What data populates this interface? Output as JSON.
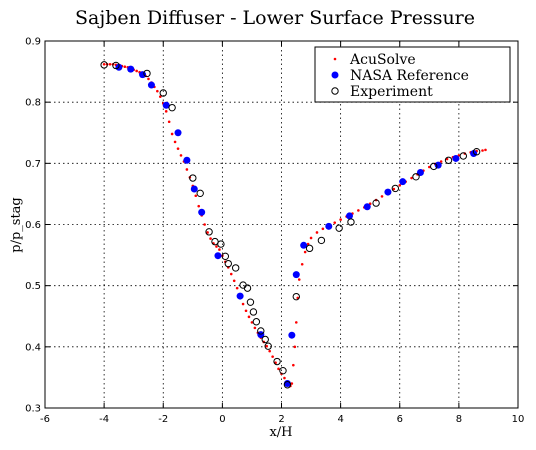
{
  "chart_data": {
    "type": "scatter",
    "title": "Sajben Diffuser - Lower Surface Pressure",
    "xlabel": "x/H",
    "ylabel": "p/p_stag",
    "xlim": [
      -6,
      10
    ],
    "ylim": [
      0.3,
      0.9
    ],
    "xticks": [
      -6,
      -4,
      -2,
      0,
      2,
      4,
      6,
      8,
      10
    ],
    "yticks": [
      0.3,
      0.4,
      0.5,
      0.6,
      0.7,
      0.8,
      0.9
    ],
    "xtick_labels": [
      "-6",
      "-4",
      "-2",
      "0",
      "2",
      "4",
      "6",
      "8",
      "10"
    ],
    "ytick_labels": [
      "0.3",
      "0.4",
      "0.5",
      "0.6",
      "0.7",
      "0.8",
      "0.9"
    ],
    "grid": true,
    "legend_position": "top-right",
    "series": [
      {
        "name": "AcuSolve",
        "marker": "small-dot",
        "color": "#ff0000",
        "points": [
          [
            -4.0,
            0.862
          ],
          [
            -3.9,
            0.862
          ],
          [
            -3.8,
            0.862
          ],
          [
            -3.7,
            0.862
          ],
          [
            -3.6,
            0.861
          ],
          [
            -3.5,
            0.861
          ],
          [
            -3.4,
            0.859
          ],
          [
            -3.3,
            0.858
          ],
          [
            -3.2,
            0.857
          ],
          [
            -3.1,
            0.855
          ],
          [
            -3.0,
            0.853
          ],
          [
            -2.9,
            0.851
          ],
          [
            -2.8,
            0.849
          ],
          [
            -2.7,
            0.846
          ],
          [
            -2.6,
            0.843
          ],
          [
            -2.5,
            0.838
          ],
          [
            -2.4,
            0.832
          ],
          [
            -2.3,
            0.825
          ],
          [
            -2.2,
            0.818
          ],
          [
            -2.1,
            0.809
          ],
          [
            -2.0,
            0.798
          ],
          [
            -1.9,
            0.785
          ],
          [
            -1.8,
            0.768
          ],
          [
            -1.7,
            0.748
          ],
          [
            -1.6,
            0.735
          ],
          [
            -1.5,
            0.724
          ],
          [
            -1.4,
            0.713
          ],
          [
            -1.3,
            0.703
          ],
          [
            -1.2,
            0.69
          ],
          [
            -1.1,
            0.677
          ],
          [
            -1.0,
            0.663
          ],
          [
            -0.9,
            0.647
          ],
          [
            -0.8,
            0.63
          ],
          [
            -0.7,
            0.615
          ],
          [
            -0.6,
            0.6
          ],
          [
            -0.5,
            0.587
          ],
          [
            -0.4,
            0.577
          ],
          [
            -0.3,
            0.569
          ],
          [
            -0.2,
            0.564
          ],
          [
            -0.1,
            0.559
          ],
          [
            0.0,
            0.549
          ],
          [
            0.1,
            0.539
          ],
          [
            0.2,
            0.53
          ],
          [
            0.3,
            0.519
          ],
          [
            0.4,
            0.508
          ],
          [
            0.5,
            0.496
          ],
          [
            0.6,
            0.482
          ],
          [
            0.7,
            0.47
          ],
          [
            0.8,
            0.459
          ],
          [
            0.9,
            0.449
          ],
          [
            1.0,
            0.44
          ],
          [
            1.1,
            0.431
          ],
          [
            1.2,
            0.423
          ],
          [
            1.3,
            0.415
          ],
          [
            1.4,
            0.408
          ],
          [
            1.5,
            0.401
          ],
          [
            1.6,
            0.393
          ],
          [
            1.7,
            0.384
          ],
          [
            1.8,
            0.374
          ],
          [
            1.9,
            0.364
          ],
          [
            2.0,
            0.356
          ],
          [
            2.1,
            0.349
          ],
          [
            2.2,
            0.342
          ],
          [
            2.3,
            0.336
          ],
          [
            2.35,
            0.34
          ],
          [
            2.4,
            0.37
          ],
          [
            2.45,
            0.4
          ],
          [
            2.5,
            0.44
          ],
          [
            2.55,
            0.48
          ],
          [
            2.6,
            0.51
          ],
          [
            2.7,
            0.535
          ],
          [
            2.8,
            0.555
          ],
          [
            2.9,
            0.568
          ],
          [
            3.0,
            0.578
          ],
          [
            3.2,
            0.587
          ],
          [
            3.4,
            0.593
          ],
          [
            3.6,
            0.598
          ],
          [
            3.8,
            0.603
          ],
          [
            4.0,
            0.608
          ],
          [
            4.2,
            0.613
          ],
          [
            4.4,
            0.618
          ],
          [
            4.6,
            0.623
          ],
          [
            4.8,
            0.628
          ],
          [
            5.0,
            0.634
          ],
          [
            5.2,
            0.64
          ],
          [
            5.4,
            0.646
          ],
          [
            5.6,
            0.652
          ],
          [
            5.8,
            0.658
          ],
          [
            6.0,
            0.664
          ],
          [
            6.2,
            0.67
          ],
          [
            6.4,
            0.676
          ],
          [
            6.6,
            0.682
          ],
          [
            6.8,
            0.688
          ],
          [
            7.0,
            0.694
          ],
          [
            7.2,
            0.699
          ],
          [
            7.4,
            0.703
          ],
          [
            7.6,
            0.707
          ],
          [
            7.8,
            0.71
          ],
          [
            8.0,
            0.713
          ],
          [
            8.2,
            0.716
          ],
          [
            8.4,
            0.718
          ],
          [
            8.6,
            0.72
          ],
          [
            8.8,
            0.721
          ],
          [
            8.9,
            0.722
          ]
        ]
      },
      {
        "name": "NASA Reference",
        "marker": "filled-circle",
        "color": "#0000ff",
        "points": [
          [
            -3.5,
            0.857
          ],
          [
            -3.1,
            0.854
          ],
          [
            -2.7,
            0.845
          ],
          [
            -2.4,
            0.828
          ],
          [
            -1.9,
            0.795
          ],
          [
            -1.5,
            0.75
          ],
          [
            -1.2,
            0.705
          ],
          [
            -0.95,
            0.658
          ],
          [
            -0.7,
            0.62
          ],
          [
            -0.15,
            0.549
          ],
          [
            0.6,
            0.483
          ],
          [
            1.3,
            0.42
          ],
          [
            2.2,
            0.34
          ],
          [
            2.35,
            0.419
          ],
          [
            2.5,
            0.518
          ],
          [
            2.75,
            0.566
          ],
          [
            3.6,
            0.597
          ],
          [
            4.3,
            0.614
          ],
          [
            4.9,
            0.629
          ],
          [
            5.6,
            0.653
          ],
          [
            6.1,
            0.67
          ],
          [
            6.7,
            0.685
          ],
          [
            7.3,
            0.697
          ],
          [
            7.9,
            0.708
          ],
          [
            8.5,
            0.716
          ]
        ]
      },
      {
        "name": "Experiment",
        "marker": "open-circle",
        "color": "#000000",
        "points": [
          [
            -4.0,
            0.861
          ],
          [
            -3.6,
            0.86
          ],
          [
            -2.55,
            0.847
          ],
          [
            -2.0,
            0.815
          ],
          [
            -1.7,
            0.791
          ],
          [
            -1.0,
            0.676
          ],
          [
            -0.75,
            0.651
          ],
          [
            -0.45,
            0.588
          ],
          [
            -0.25,
            0.572
          ],
          [
            -0.05,
            0.568
          ],
          [
            0.1,
            0.548
          ],
          [
            0.2,
            0.536
          ],
          [
            0.45,
            0.529
          ],
          [
            0.7,
            0.501
          ],
          [
            0.85,
            0.496
          ],
          [
            0.95,
            0.473
          ],
          [
            1.05,
            0.457
          ],
          [
            1.15,
            0.441
          ],
          [
            1.3,
            0.426
          ],
          [
            1.45,
            0.412
          ],
          [
            1.55,
            0.401
          ],
          [
            1.85,
            0.376
          ],
          [
            2.05,
            0.361
          ],
          [
            2.2,
            0.338
          ],
          [
            2.5,
            0.482
          ],
          [
            2.95,
            0.561
          ],
          [
            3.35,
            0.574
          ],
          [
            3.95,
            0.594
          ],
          [
            4.35,
            0.604
          ],
          [
            5.2,
            0.635
          ],
          [
            5.85,
            0.659
          ],
          [
            6.55,
            0.678
          ],
          [
            7.15,
            0.695
          ],
          [
            7.65,
            0.705
          ],
          [
            8.15,
            0.712
          ],
          [
            8.6,
            0.719
          ]
        ]
      }
    ]
  }
}
